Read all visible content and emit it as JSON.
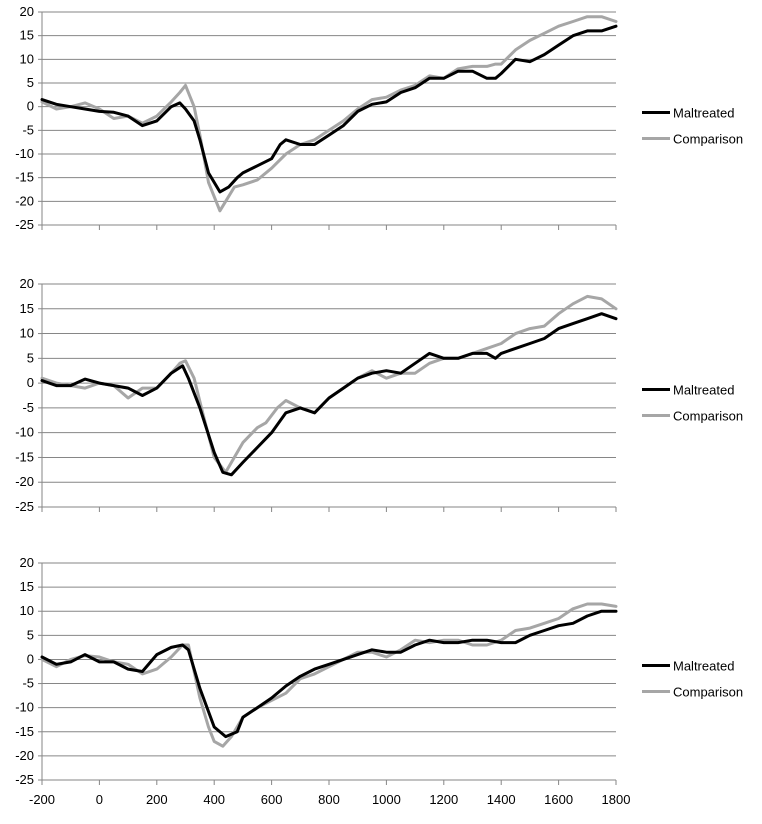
{
  "chart_data": [
    {
      "type": "line",
      "title": "",
      "xlabel": "",
      "ylabel": "",
      "xlim": [
        -200,
        1800
      ],
      "ylim": [
        -25,
        20
      ],
      "yticks": [
        20,
        15,
        10,
        5,
        0,
        -5,
        -10,
        -15,
        -20,
        -25
      ],
      "xticks": [
        -200,
        0,
        200,
        400,
        600,
        800,
        1000,
        1200,
        1400,
        1600,
        1800
      ],
      "show_xtick_labels": false,
      "grid": "horizontal",
      "legend": "right",
      "series": [
        {
          "name": "Maltreated",
          "color": "#000000",
          "x": [
            -200,
            -150,
            -100,
            -50,
            0,
            50,
            100,
            150,
            200,
            250,
            280,
            300,
            330,
            350,
            380,
            420,
            450,
            480,
            500,
            550,
            600,
            630,
            650,
            700,
            750,
            800,
            850,
            900,
            950,
            1000,
            1050,
            1100,
            1150,
            1200,
            1250,
            1300,
            1350,
            1380,
            1400,
            1450,
            1500,
            1550,
            1600,
            1650,
            1700,
            1750,
            1800
          ],
          "y": [
            1.5,
            0.5,
            0,
            -0.5,
            -1,
            -1.2,
            -2,
            -4,
            -3,
            0,
            0.8,
            -0.5,
            -3,
            -7,
            -14,
            -18,
            -17,
            -15,
            -14,
            -12.5,
            -11,
            -8,
            -7,
            -8,
            -8,
            -6,
            -4,
            -1,
            0.5,
            1,
            3,
            4,
            6,
            6,
            7.5,
            7.5,
            6,
            6,
            7,
            10,
            9.5,
            11,
            13,
            15,
            16,
            16,
            17
          ]
        },
        {
          "name": "Comparison",
          "color": "#a6a6a6",
          "x": [
            -200,
            -150,
            -100,
            -50,
            0,
            50,
            100,
            150,
            200,
            250,
            280,
            300,
            330,
            350,
            380,
            420,
            440,
            470,
            500,
            550,
            600,
            650,
            700,
            750,
            800,
            850,
            900,
            950,
            1000,
            1050,
            1100,
            1150,
            1200,
            1250,
            1300,
            1350,
            1380,
            1400,
            1450,
            1500,
            1550,
            1600,
            1650,
            1700,
            1750,
            1800
          ],
          "y": [
            1,
            -0.5,
            0,
            0.8,
            -0.5,
            -2.5,
            -2,
            -3.5,
            -2,
            1,
            3,
            4.5,
            0,
            -6,
            -16,
            -22,
            -20,
            -17,
            -16.5,
            -15.5,
            -13,
            -10,
            -8,
            -7,
            -5,
            -3,
            -0.5,
            1.5,
            2,
            3.5,
            4.5,
            6.5,
            6,
            8,
            8.5,
            8.5,
            9,
            9,
            12,
            14,
            15.5,
            17,
            18,
            19,
            19,
            18
          ]
        }
      ]
    },
    {
      "type": "line",
      "title": "",
      "xlabel": "",
      "ylabel": "",
      "xlim": [
        -200,
        1800
      ],
      "ylim": [
        -25,
        20
      ],
      "yticks": [
        20,
        15,
        10,
        5,
        0,
        -5,
        -10,
        -15,
        -20,
        -25
      ],
      "xticks": [
        -200,
        0,
        200,
        400,
        600,
        800,
        1000,
        1200,
        1400,
        1600,
        1800
      ],
      "show_xtick_labels": false,
      "grid": "horizontal",
      "legend": "right",
      "series": [
        {
          "name": "Maltreated",
          "color": "#000000",
          "x": [
            -200,
            -150,
            -100,
            -50,
            0,
            50,
            100,
            150,
            200,
            250,
            290,
            310,
            350,
            400,
            430,
            460,
            500,
            550,
            600,
            650,
            700,
            750,
            800,
            850,
            900,
            950,
            1000,
            1050,
            1100,
            1150,
            1200,
            1250,
            1300,
            1350,
            1380,
            1400,
            1450,
            1500,
            1550,
            1600,
            1650,
            1700,
            1750,
            1800
          ],
          "y": [
            0.5,
            -0.5,
            -0.5,
            0.8,
            0,
            -0.5,
            -1,
            -2.5,
            -1,
            2,
            3.5,
            1,
            -5,
            -14,
            -18,
            -18.5,
            -16,
            -13,
            -10,
            -6,
            -5,
            -6,
            -3,
            -1,
            1,
            2,
            2.5,
            2,
            4,
            6,
            5,
            5,
            6,
            6,
            5,
            6,
            7,
            8,
            9,
            11,
            12,
            13,
            14,
            13
          ]
        },
        {
          "name": "Comparison",
          "color": "#a6a6a6",
          "x": [
            -200,
            -150,
            -100,
            -50,
            0,
            50,
            100,
            150,
            200,
            250,
            280,
            300,
            330,
            360,
            400,
            440,
            460,
            500,
            550,
            580,
            620,
            650,
            700,
            750,
            800,
            850,
            900,
            950,
            1000,
            1050,
            1100,
            1150,
            1200,
            1250,
            1300,
            1350,
            1400,
            1450,
            1500,
            1550,
            1600,
            1650,
            1700,
            1750,
            1800
          ],
          "y": [
            1,
            0,
            -0.5,
            -1,
            0,
            -0.5,
            -3,
            -1,
            -1,
            2,
            4,
            4.5,
            1,
            -6,
            -15,
            -18,
            -16,
            -12,
            -9,
            -8,
            -5,
            -3.5,
            -5,
            -6,
            -3,
            -1,
            1,
            2.5,
            1,
            2,
            2,
            4,
            5,
            5,
            6,
            7,
            8,
            10,
            11,
            11.5,
            14,
            16,
            17.5,
            17,
            15
          ]
        }
      ]
    },
    {
      "type": "line",
      "title": "",
      "xlabel": "",
      "ylabel": "",
      "xlim": [
        -200,
        1800
      ],
      "ylim": [
        -25,
        20
      ],
      "yticks": [
        20,
        15,
        10,
        5,
        0,
        -5,
        -10,
        -15,
        -20,
        -25
      ],
      "xticks": [
        -200,
        0,
        200,
        400,
        600,
        800,
        1000,
        1200,
        1400,
        1600,
        1800
      ],
      "xtick_labels": [
        "-200",
        "0",
        "200",
        "400",
        "600",
        "800",
        "1000",
        "1200",
        "1400",
        "1600",
        "1800"
      ],
      "show_xtick_labels": true,
      "grid": "horizontal",
      "legend": "right",
      "series": [
        {
          "name": "Maltreated",
          "color": "#000000",
          "x": [
            -200,
            -150,
            -100,
            -50,
            0,
            50,
            100,
            150,
            200,
            250,
            290,
            310,
            350,
            400,
            440,
            480,
            500,
            550,
            600,
            650,
            700,
            750,
            800,
            850,
            900,
            950,
            1000,
            1050,
            1100,
            1150,
            1200,
            1250,
            1300,
            1350,
            1400,
            1450,
            1500,
            1550,
            1600,
            1650,
            1700,
            1750,
            1800
          ],
          "y": [
            0.5,
            -1,
            -0.5,
            1,
            -0.5,
            -0.5,
            -2,
            -2.5,
            1,
            2.5,
            3,
            2,
            -6,
            -14,
            -16,
            -15,
            -12,
            -10,
            -8,
            -5.5,
            -3.5,
            -2,
            -1,
            0,
            1,
            2,
            1.5,
            1.5,
            3,
            4,
            3.5,
            3.5,
            4,
            4,
            3.5,
            3.5,
            5,
            6,
            7,
            7.5,
            9,
            10,
            10
          ]
        },
        {
          "name": "Comparison",
          "color": "#a6a6a6",
          "x": [
            -200,
            -150,
            -100,
            -50,
            0,
            50,
            100,
            150,
            200,
            250,
            290,
            310,
            350,
            380,
            400,
            430,
            460,
            500,
            550,
            600,
            650,
            700,
            750,
            800,
            850,
            900,
            950,
            1000,
            1050,
            1100,
            1150,
            1200,
            1250,
            1300,
            1350,
            1400,
            1450,
            1500,
            1550,
            1600,
            1650,
            1700,
            1750,
            1800
          ],
          "y": [
            0,
            -1.5,
            0,
            0.8,
            0.5,
            -0.5,
            -1,
            -3,
            -2,
            0.5,
            3,
            3,
            -8,
            -14,
            -17,
            -18,
            -16,
            -12,
            -10,
            -8.5,
            -7,
            -4,
            -3,
            -1.5,
            0,
            1.5,
            1.5,
            0.5,
            2,
            4,
            3.5,
            4,
            4,
            3,
            3,
            4,
            6,
            6.5,
            7.5,
            8.5,
            10.5,
            11.5,
            11.5,
            11
          ]
        }
      ]
    }
  ]
}
